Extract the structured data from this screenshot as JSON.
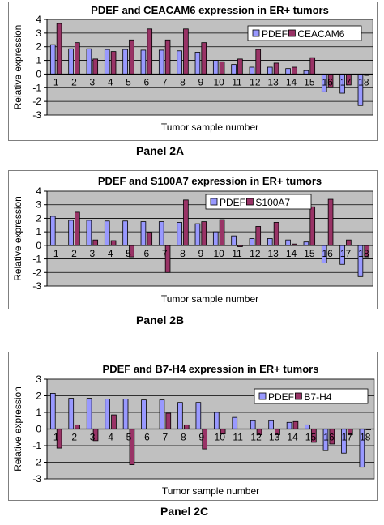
{
  "colors": {
    "pdef": "#9999ff",
    "series2": "#993366",
    "plot_bg": "#c0c0c0",
    "grid": "#000000"
  },
  "chart_data": [
    {
      "type": "bar",
      "title": "PDEF and CEACAM6 expression in ER+  tumors",
      "xlabel": "Tumor sample number",
      "ylabel": "Relative expression",
      "caption": "Panel 2A",
      "ylim": [
        -3,
        4
      ],
      "yticks": [
        -3,
        -2,
        -1,
        0,
        1,
        2,
        3,
        4
      ],
      "categories": [
        "1",
        "2",
        "3",
        "4",
        "5",
        "6",
        "7",
        "8",
        "9",
        "10",
        "11",
        "12",
        "13",
        "14",
        "15",
        "16",
        "17",
        "18"
      ],
      "legend_position": "top-right",
      "grid": true,
      "series": [
        {
          "name": "PDEF",
          "color": "#9999ff",
          "values": [
            2.15,
            1.85,
            1.85,
            1.8,
            1.8,
            1.75,
            1.75,
            1.7,
            1.6,
            1.0,
            0.7,
            0.5,
            0.5,
            0.4,
            0.25,
            -1.3,
            -1.4,
            -2.3
          ]
        },
        {
          "name": "CEACAM6",
          "color": "#993366",
          "values": [
            3.7,
            2.3,
            1.1,
            1.65,
            2.5,
            3.3,
            2.5,
            3.3,
            2.3,
            0.9,
            1.1,
            1.8,
            0.8,
            0.5,
            1.2,
            -1.0,
            -0.8,
            -0.1
          ]
        }
      ]
    },
    {
      "type": "bar",
      "title": "PDEF and S100A7 expression in ER+ tumors",
      "xlabel": "Tumor sample number",
      "ylabel": "Relative expression",
      "caption": "Panel 2B",
      "ylim": [
        -3,
        4
      ],
      "yticks": [
        -3,
        -2,
        -1,
        0,
        1,
        2,
        3,
        4
      ],
      "categories": [
        "1",
        "2",
        "3",
        "4",
        "5",
        "6",
        "7",
        "8",
        "9",
        "10",
        "11",
        "12",
        "13",
        "14",
        "15",
        "16",
        "17",
        "18"
      ],
      "legend_position": "top-right",
      "grid": true,
      "series": [
        {
          "name": "PDEF",
          "color": "#9999ff",
          "values": [
            2.15,
            1.85,
            1.85,
            1.8,
            1.8,
            1.75,
            1.75,
            1.7,
            1.6,
            1.0,
            0.7,
            0.5,
            0.5,
            0.4,
            0.25,
            -1.3,
            -1.4,
            -2.3
          ]
        },
        {
          "name": "S100A7",
          "color": "#993366",
          "values": [
            0.0,
            2.45,
            0.4,
            0.35,
            -0.85,
            0.95,
            -2.0,
            3.35,
            1.75,
            1.9,
            -0.1,
            1.4,
            1.7,
            0.1,
            2.85,
            3.4,
            0.4,
            -0.85
          ]
        }
      ]
    },
    {
      "type": "bar",
      "title": "PDEF and B7-H4 expression in ER+ tumors",
      "xlabel": "Tumor sample number",
      "ylabel": "Relative expression",
      "caption": "Panel 2C",
      "ylim": [
        -3,
        3
      ],
      "yticks": [
        -3,
        -2,
        -1,
        0,
        1,
        2,
        3
      ],
      "categories": [
        "1",
        "2",
        "3",
        "4",
        "5",
        "6",
        "7",
        "8",
        "9",
        "10",
        "11",
        "12",
        "13",
        "14",
        "15",
        "16",
        "17",
        "18"
      ],
      "legend_position": "top-right",
      "grid": true,
      "series": [
        {
          "name": "PDEF",
          "color": "#9999ff",
          "values": [
            2.15,
            1.85,
            1.85,
            1.8,
            1.8,
            1.75,
            1.75,
            1.6,
            1.6,
            1.0,
            0.7,
            0.5,
            0.5,
            0.4,
            0.25,
            -1.3,
            -1.45,
            -2.3
          ]
        },
        {
          "name": "B7-H4",
          "color": "#993366",
          "values": [
            -1.15,
            0.25,
            -0.7,
            0.85,
            -2.15,
            0.0,
            0.95,
            0.25,
            -1.2,
            -0.3,
            0.0,
            -0.35,
            -0.35,
            0.45,
            -0.8,
            -0.9,
            -0.35,
            -0.05
          ]
        }
      ]
    }
  ]
}
